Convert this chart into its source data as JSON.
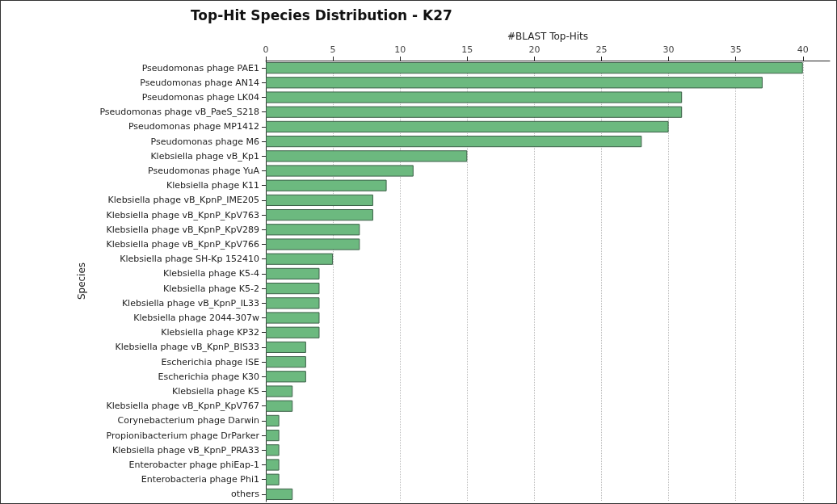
{
  "chart_data": {
    "type": "bar",
    "orientation": "horizontal",
    "title": "Top-Hit Species Distribution - K27",
    "xlabel": "#BLAST Top-Hits",
    "ylabel": "Species",
    "categories": [
      "Pseudomonas phage PAE1",
      "Pseudomonas phage AN14",
      "Pseudomonas phage LK04",
      "Pseudomonas phage vB_PaeS_S218",
      "Pseudomonas phage MP1412",
      "Pseudomonas phage M6",
      "Klebsiella phage vB_Kp1",
      "Pseudomonas phage YuA",
      "Klebsiella phage K11",
      "Klebsiella phage vB_KpnP_IME205",
      "Klebsiella phage vB_KpnP_KpV763",
      "Klebsiella phage vB_KpnP_KpV289",
      "Klebsiella phage vB_KpnP_KpV766",
      "Klebsiella phage SH-Kp 152410",
      "Klebsiella phage K5-4",
      "Klebsiella phage K5-2",
      "Klebsiella phage vB_KpnP_IL33",
      "Klebsiella phage 2044-307w",
      "Klebsiella phage KP32",
      "Klebsiella phage vB_KpnP_BIS33",
      "Escherichia phage ISE",
      "Escherichia phage K30",
      "Klebsiella phage K5",
      "Klebsiella phage vB_KpnP_KpV767",
      "Corynebacterium phage Darwin",
      "Propionibacterium phage DrParker",
      "Klebsiella phage vB_KpnP_PRA33",
      "Enterobacter phage phiEap-1",
      "Enterobacteria phage Phi1",
      "others"
    ],
    "values": [
      40,
      37,
      31,
      31,
      30,
      28,
      15,
      11,
      9,
      8,
      8,
      7,
      7,
      5,
      4,
      4,
      4,
      4,
      4,
      3,
      3,
      3,
      2,
      2,
      1,
      1,
      1,
      1,
      1,
      2
    ],
    "color": "#6cb97f",
    "xlim": [
      0,
      42
    ],
    "xticks": [
      0,
      5,
      10,
      15,
      20,
      25,
      30,
      35,
      40
    ],
    "grid": "x"
  }
}
